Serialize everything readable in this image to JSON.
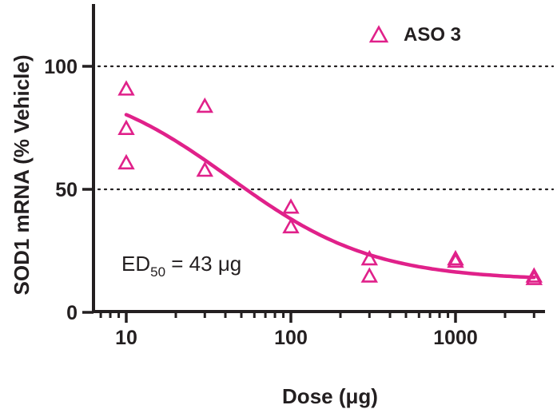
{
  "chart_data": {
    "type": "scatter",
    "xlabel": "Dose (μg)",
    "ylabel": "SOD1 mRNA (% Vehicle)",
    "x_scale": "log",
    "xlim": [
      7,
      3600
    ],
    "ylim": [
      0,
      125
    ],
    "x_ticks": [
      10,
      100,
      1000
    ],
    "x_tick_labels": [
      "10",
      "100",
      "1000"
    ],
    "y_ticks": [
      0,
      50,
      100
    ],
    "y_tick_labels": [
      "0",
      "50",
      "100"
    ],
    "reference_lines_y": [
      50,
      100
    ],
    "grid": false,
    "legend_position": "top-right",
    "color": "#e0218a",
    "series": [
      {
        "name": "ASO 3",
        "marker": "open-triangle",
        "x": [
          10,
          10,
          10,
          30,
          30,
          100,
          100,
          300,
          300,
          1000,
          1000,
          3000,
          3000
        ],
        "y": [
          91,
          75,
          61,
          84,
          58,
          43,
          35,
          22,
          15,
          22,
          21,
          15,
          14
        ]
      }
    ],
    "fit_curve": {
      "model": "sigmoid dose-response",
      "top": 96,
      "bottom": 13,
      "ed50": 43,
      "hill_slope": 1
    },
    "annotation": {
      "prefix": "ED",
      "subscript": "50",
      "suffix": " = 43 μg"
    }
  }
}
